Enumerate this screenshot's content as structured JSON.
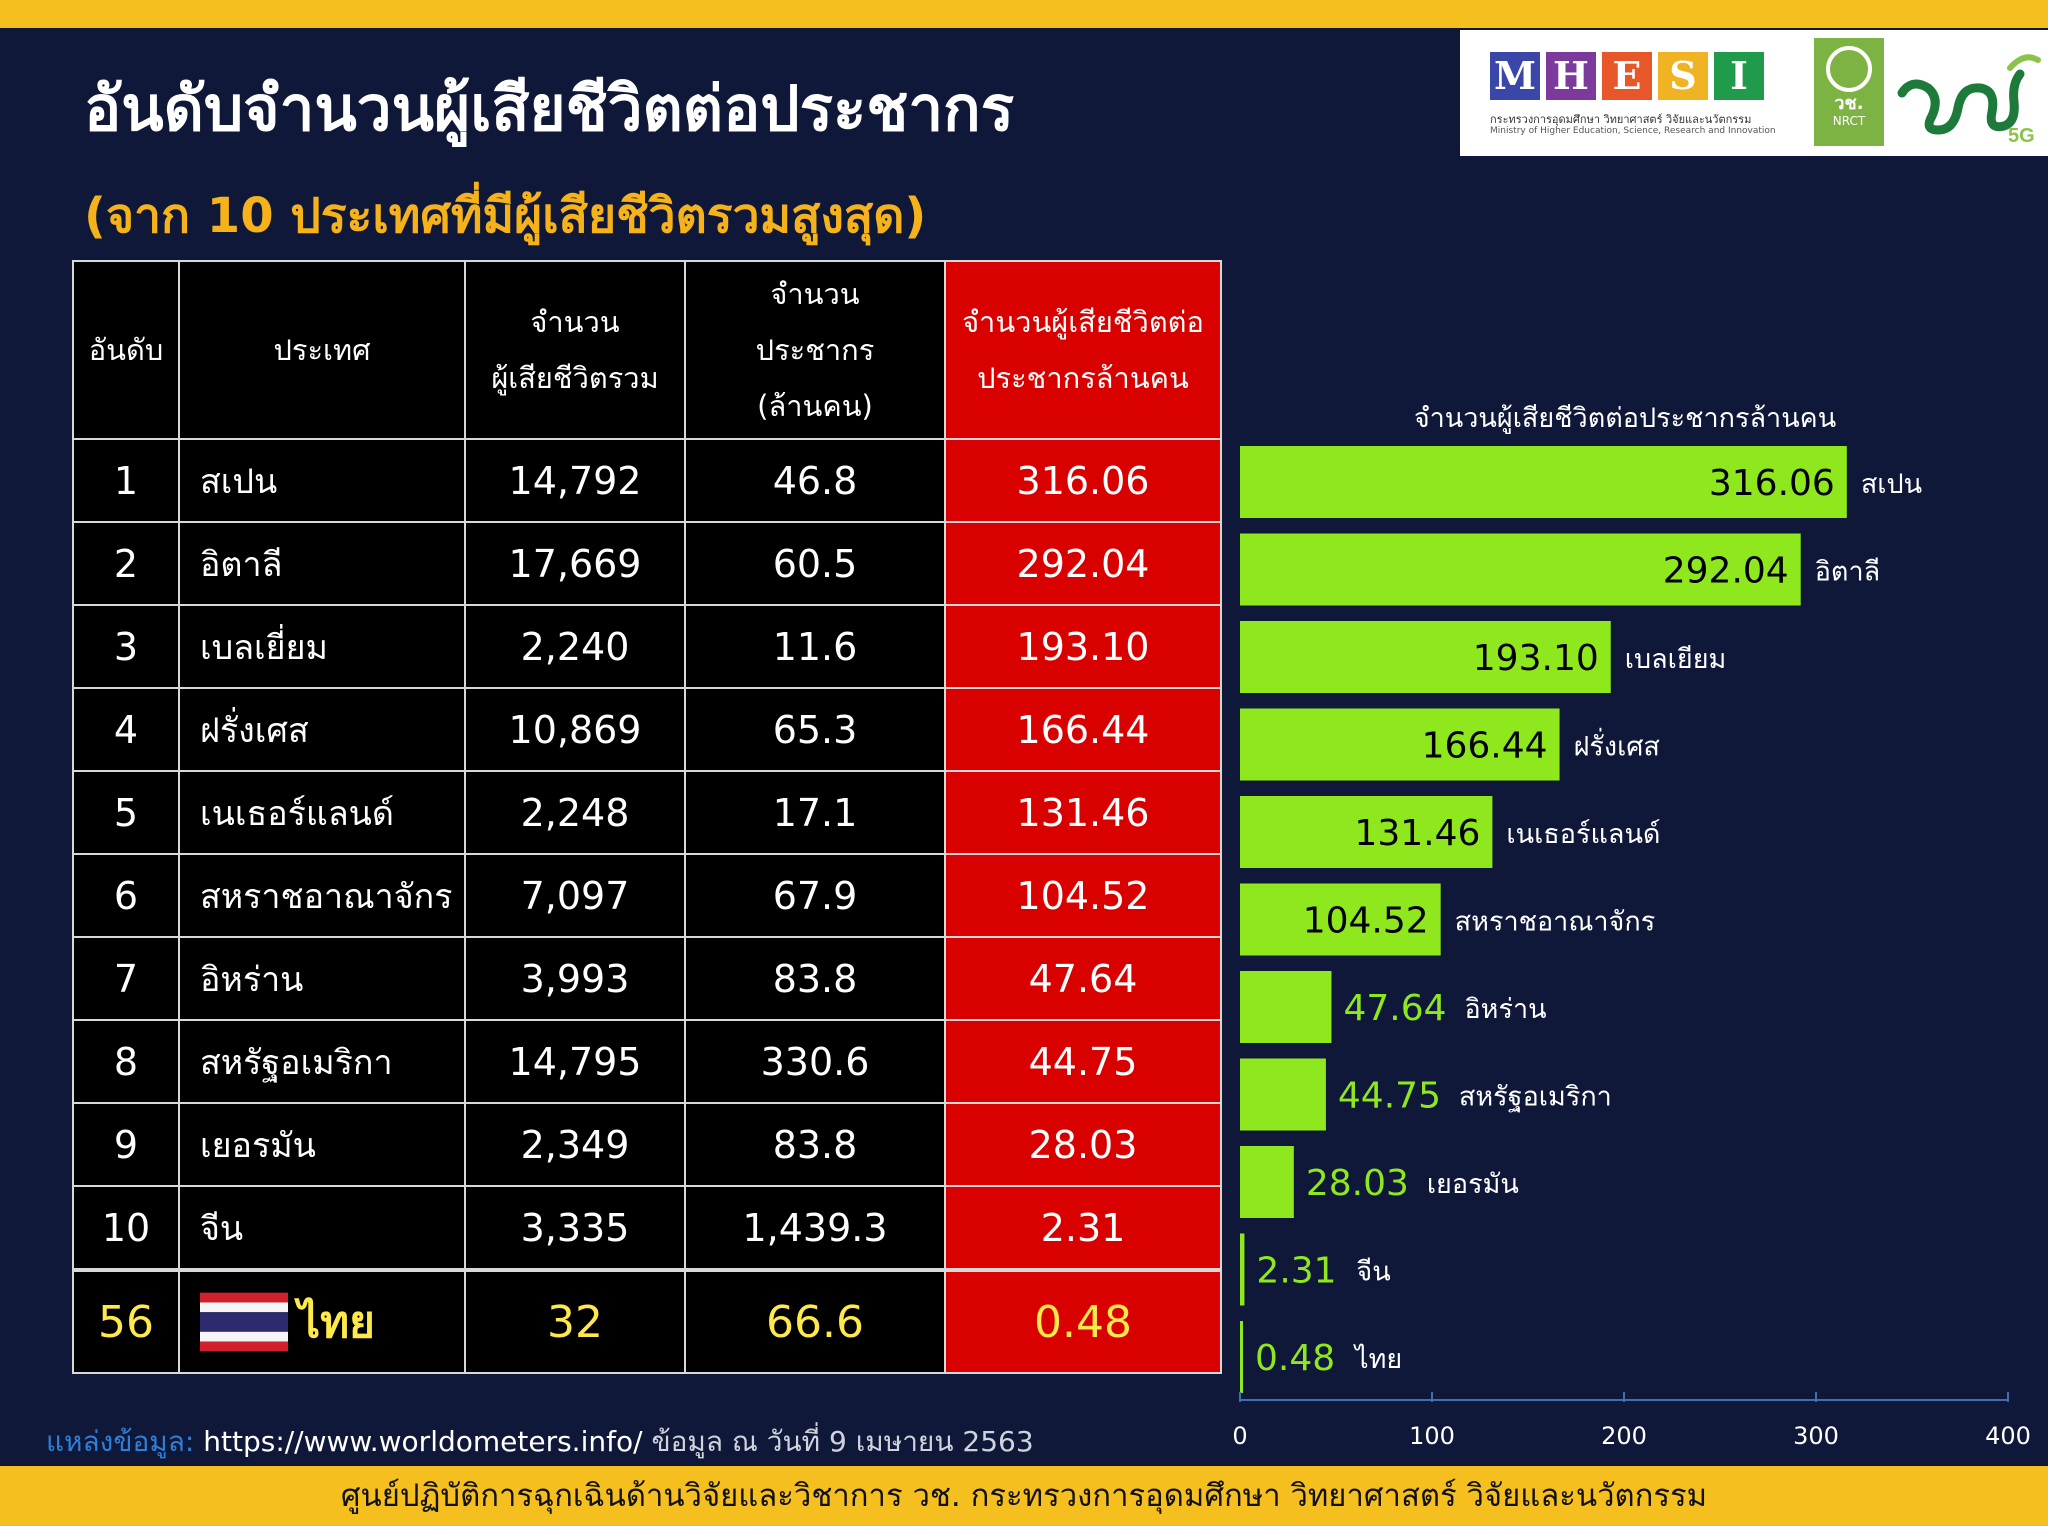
{
  "title": "อันดับจำนวนผู้เสียชีวิตต่อประชากร",
  "subtitle": "(จาก 10 ประเทศที่มีผู้เสียชีวิตรวมสูงสุด)",
  "logos": {
    "mhesi_letters": [
      "M",
      "H",
      "E",
      "S",
      "I"
    ],
    "mhesi_colors": [
      "#3a46a8",
      "#7b3a9c",
      "#e8572a",
      "#f0b323",
      "#1f9b4b"
    ],
    "mhesi_thai": "กระทรวงการอุดมศึกษา วิทยาศาสตร์ วิจัยและนวัตกรรม",
    "mhesi_english": "Ministry of Higher Education, Science, Research and Innovation",
    "nrct_abbr": "วช.",
    "nrct_en": "NRCT"
  },
  "table": {
    "headers": {
      "rank": "อันดับ",
      "country": "ประเทศ",
      "deaths": [
        "จำนวน",
        "ผู้เสียชีวิตรวม"
      ],
      "population": [
        "จำนวน",
        "ประชากร",
        "(ล้านคน)"
      ],
      "per_million": [
        "จำนวนผู้เสียชีวิตต่อ",
        "ประชากรล้านคน"
      ]
    },
    "rows": [
      {
        "rank": "1",
        "country": "สเปน",
        "deaths": "14,792",
        "population": "46.8",
        "per_million": "316.06"
      },
      {
        "rank": "2",
        "country": "อิตาลี",
        "deaths": "17,669",
        "population": "60.5",
        "per_million": "292.04"
      },
      {
        "rank": "3",
        "country": "เบลเยี่ยม",
        "deaths": "2,240",
        "population": "11.6",
        "per_million": "193.10"
      },
      {
        "rank": "4",
        "country": "ฝรั่งเศส",
        "deaths": "10,869",
        "population": "65.3",
        "per_million": "166.44"
      },
      {
        "rank": "5",
        "country": "เนเธอร์แลนด์",
        "deaths": "2,248",
        "population": "17.1",
        "per_million": "131.46"
      },
      {
        "rank": "6",
        "country": "สหราชอาณาจักร",
        "deaths": "7,097",
        "population": "67.9",
        "per_million": "104.52"
      },
      {
        "rank": "7",
        "country": "อิหร่าน",
        "deaths": "3,993",
        "population": "83.8",
        "per_million": "47.64"
      },
      {
        "rank": "8",
        "country": "สหรัฐอเมริกา",
        "deaths": "14,795",
        "population": "330.6",
        "per_million": "44.75"
      },
      {
        "rank": "9",
        "country": "เยอรมัน",
        "deaths": "2,349",
        "population": "83.8",
        "per_million": "28.03"
      },
      {
        "rank": "10",
        "country": "จีน",
        "deaths": "3,335",
        "population": "1,439.3",
        "per_million": "2.31"
      }
    ],
    "thailand": {
      "rank": "56",
      "country": "ไทย",
      "deaths": "32",
      "population": "66.6",
      "per_million": "0.48"
    }
  },
  "source": {
    "label": "แหล่งข้อมูล:",
    "url": "https://www.worldometers.info/",
    "note": "ข้อมูล ณ วันที่ 9 เมษายน 2563"
  },
  "footer": "ศูนย์ปฏิบัติการฉุกเฉินด้านวิจัยและวิชาการ    วช.    กระทรวงการอุดมศึกษา วิทยาศาสตร์ วิจัยและนวัตกรรม",
  "colors": {
    "bar": "#8fe81d",
    "accent_red": "#d90000",
    "banner": "#f5bf1f",
    "background": "#0f1838"
  },
  "chart_data": {
    "type": "bar",
    "orientation": "horizontal",
    "title": "จำนวนผู้เสียชีวิตต่อประชากรล้านคน",
    "categories": [
      "สเปน",
      "อิตาลี",
      "เบลเยียม",
      "ฝรั่งเศส",
      "เนเธอร์แลนด์",
      "สหราชอาณาจักร",
      "อิหร่าน",
      "สหรัฐอเมริกา",
      "เยอรมัน",
      "จีน",
      "ไทย"
    ],
    "values": [
      316.06,
      292.04,
      193.1,
      166.44,
      131.46,
      104.52,
      47.64,
      44.75,
      28.03,
      2.31,
      0.48
    ],
    "value_labels": [
      "316.06",
      "292.04",
      "193.10",
      "166.44",
      "131.46",
      "104.52",
      "47.64",
      "44.75",
      "28.03",
      "2.31",
      "0.48"
    ],
    "xlim": [
      0,
      400
    ],
    "xticks": [
      "0",
      "100",
      "200",
      "300",
      "400"
    ],
    "grid": false
  }
}
